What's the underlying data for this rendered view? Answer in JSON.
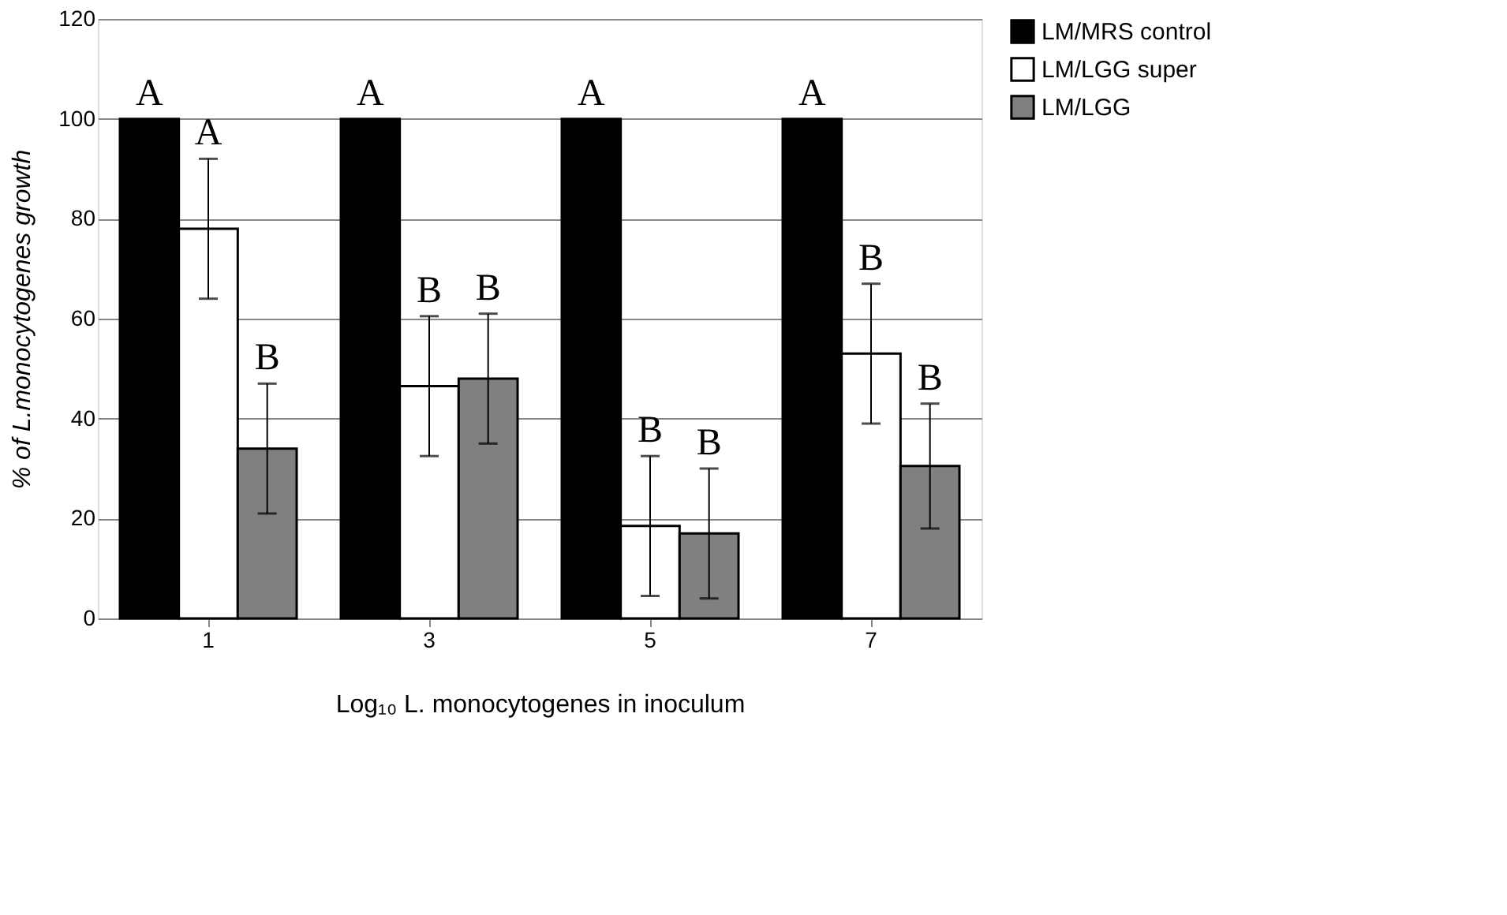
{
  "chart_data": {
    "type": "bar",
    "xlabel": "Log₁₀ L. monocytogenes in inoculum",
    "ylabel": "% of L.monocytogenes growth",
    "categories": [
      "1",
      "3",
      "5",
      "7"
    ],
    "ylim": [
      0,
      120
    ],
    "yticks": [
      0,
      20,
      40,
      60,
      80,
      100,
      120
    ],
    "grid": "y",
    "legend": "right",
    "series": [
      {
        "name": "LM/MRS control",
        "color": "#000000",
        "values": [
          100,
          100,
          100,
          100
        ],
        "value_labels": [
          "A",
          "A",
          "A",
          "A"
        ]
      },
      {
        "name": "LM/LGG super",
        "color": "#ffffff",
        "values": [
          78,
          46.5,
          18.5,
          53
        ],
        "errors": [
          14,
          14,
          14,
          14
        ],
        "value_labels": [
          "A",
          "B",
          "B",
          "B"
        ]
      },
      {
        "name": "LM/LGG",
        "color": "#808080",
        "values": [
          34,
          48,
          17,
          30.5
        ],
        "errors": [
          13,
          13,
          13,
          12.5
        ],
        "value_labels": [
          "B",
          "B",
          "B",
          "B"
        ]
      }
    ]
  }
}
